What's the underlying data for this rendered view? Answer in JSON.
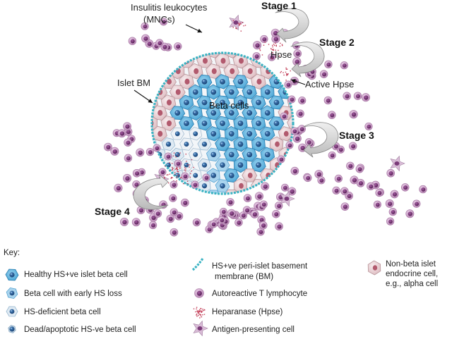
{
  "labels": {
    "insulitis_line1": "Insulitis leukocytes",
    "insulitis_line2": "(MNCs)",
    "islet_bm": "Islet BM",
    "beta_cells": "Beta cells",
    "hpse": "Hpse",
    "active_hpse": "Active Hpse"
  },
  "stages": [
    "Stage 1",
    "Stage 2",
    "Stage 3",
    "Stage 4"
  ],
  "key": {
    "title": "Key:",
    "healthy_beta": "Healthy HS+ve islet beta cell",
    "early_hs_loss": "Beta cell with early HS loss",
    "hs_deficient": "HS-deficient beta cell",
    "dead_apoptotic": "Dead/apoptotic HS-ve beta cell",
    "bm_line1": "HS+ve peri-islet basement",
    "bm_line2": "membrane (BM)",
    "t_lymphocyte": "Autoreactive T lymphocyte",
    "heparanase": "Heparanase (Hpse)",
    "apc": "Antigen-presenting cell",
    "nonbeta_line1": "Non-beta islet",
    "nonbeta_line2": "endocrine cell,",
    "nonbeta_line3": "e.g., alpha cell"
  },
  "colors": {
    "beta_cell": "#5fb3df",
    "beta_nucleus": "#1f4f86",
    "early_loss_cell": "#a9d4ee",
    "deficient_cell": "#dfeaf3",
    "t_cell": "#cfa0c8",
    "t_cell_nucleus": "#6b2a68",
    "alpha_cell": "#ead3d6",
    "alpha_nucleus": "#b5566e",
    "basement_membrane": "#3bb3c3",
    "heparanase": "#c23b55",
    "arrow_fill": "#dcdcdc"
  }
}
